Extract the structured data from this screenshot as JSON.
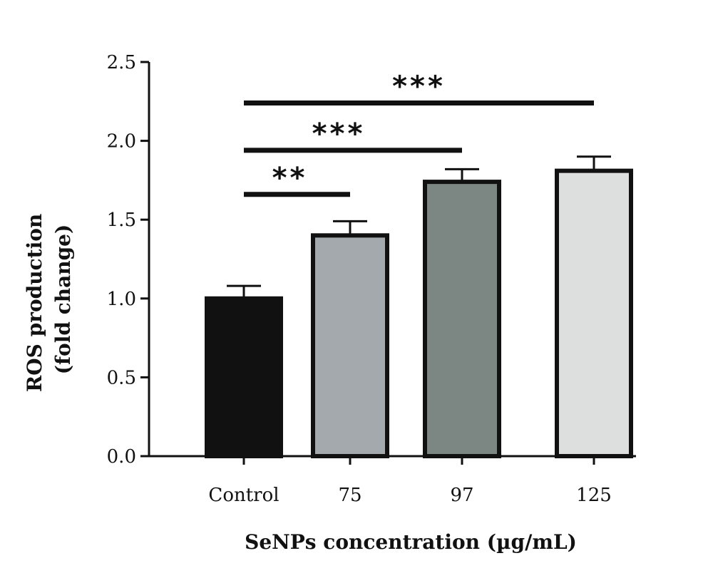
{
  "chart_data": {
    "type": "bar",
    "title": "",
    "xlabel": "SeNPs concentration (µg/mL)",
    "ylabel_line1": "ROS production",
    "ylabel_line2": "(fold change)",
    "categories": [
      "Control",
      "75",
      "97",
      "125"
    ],
    "values": [
      1.0,
      1.4,
      1.74,
      1.81
    ],
    "errors": [
      0.08,
      0.09,
      0.08,
      0.09
    ],
    "colors": [
      "#111111",
      "#a3a9ac",
      "#7c8683",
      "#dcdfdd"
    ],
    "border_color": "#111111",
    "ylim": [
      0,
      2.5
    ],
    "yticks": [
      0.0,
      0.5,
      1.0,
      1.5,
      2.0,
      2.5
    ],
    "ytick_labels": [
      "0.0",
      "0.5",
      "1.0",
      "1.5",
      "2.0",
      "2.5"
    ],
    "grid": false,
    "significance": [
      {
        "from": 0,
        "to": 1,
        "label": "**",
        "y": 1.66
      },
      {
        "from": 0,
        "to": 2,
        "label": "***",
        "y": 1.94
      },
      {
        "from": 0,
        "to": 3,
        "label": "***",
        "y": 2.24
      }
    ]
  }
}
